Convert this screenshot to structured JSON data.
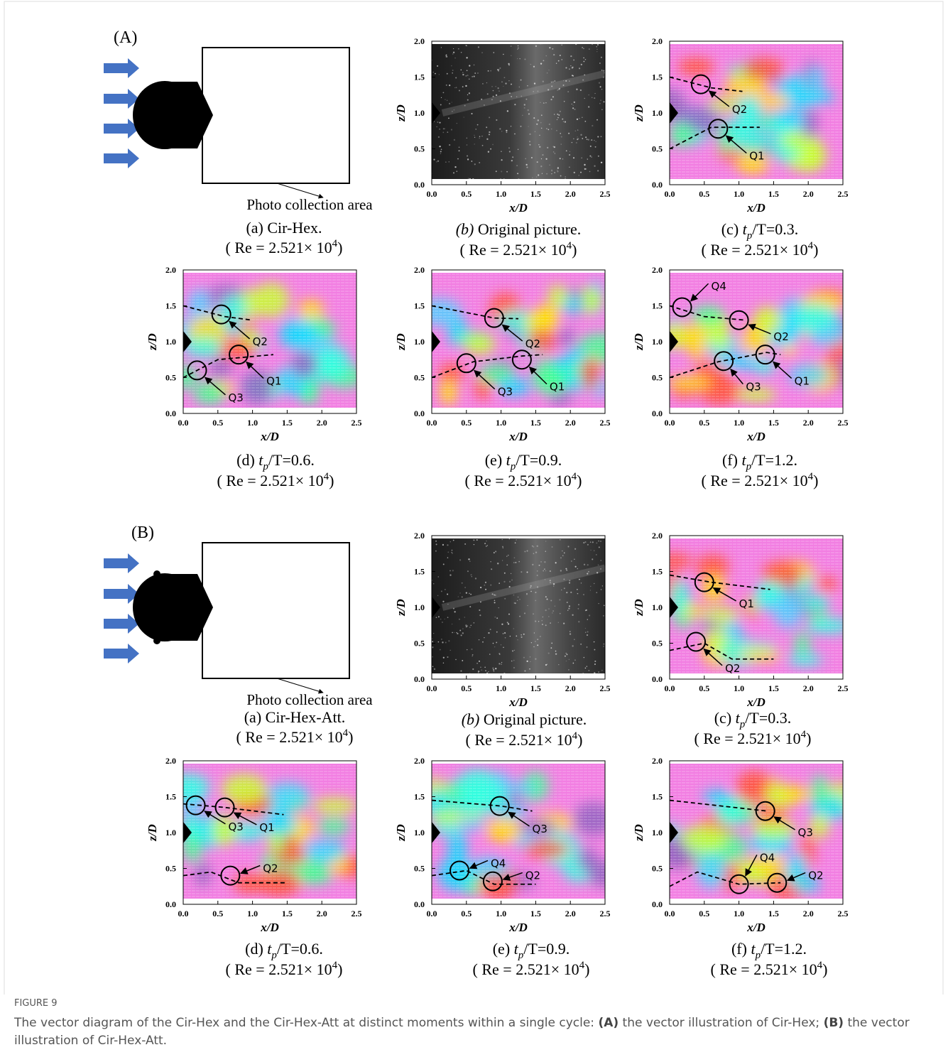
{
  "axes": {
    "x_label": "x/D",
    "y_label": "z/D",
    "xticks": [
      "0.0",
      "0.5",
      "1.0",
      "1.5",
      "2.0",
      "2.5"
    ],
    "yticks": [
      "0.0",
      "0.5",
      "1.0",
      "1.5",
      "2.0"
    ]
  },
  "reynolds": {
    "base": "( Re = 2.521× 10",
    "exp": "4",
    "close": ")"
  },
  "groups": [
    {
      "label": "(A)",
      "schematic": {
        "area_label": "Photo collection area",
        "caption": "(a) Cir-Hex."
      },
      "panels": [
        {
          "caption": {
            "letter": "(b)",
            "text": " Original picture."
          },
          "annotations": []
        },
        {
          "caption": {
            "letter": "(c) ",
            "t": "t",
            "sub": "p",
            "text": "/T=0.3."
          },
          "annotations": [
            "Q2",
            "Q1"
          ]
        },
        {
          "caption": {
            "letter": "(d) ",
            "t": "t",
            "sub": "p",
            "text": "/T=0.6."
          },
          "annotations": [
            "Q2",
            "Q1",
            "Q3"
          ]
        },
        {
          "caption": {
            "letter": "(e) ",
            "t": "t",
            "sub": "p",
            "text": "/T=0.9."
          },
          "annotations": [
            "Q2",
            "Q1",
            "Q3"
          ]
        },
        {
          "caption": {
            "letter": "(f) ",
            "t": "t",
            "sub": "p",
            "text": "/T=1.2."
          },
          "annotations": [
            "Q4",
            "Q2",
            "Q3",
            "Q1"
          ]
        }
      ]
    },
    {
      "label": "(B)",
      "schematic": {
        "area_label": "Photo collection area",
        "caption": "(a) Cir-Hex-Att."
      },
      "panels": [
        {
          "caption": {
            "letter": "(b)",
            "text": " Original picture."
          },
          "annotations": []
        },
        {
          "caption": {
            "letter": "(c) ",
            "t": "t",
            "sub": "p",
            "text": "/T=0.3."
          },
          "annotations": [
            "Q1",
            "Q2"
          ]
        },
        {
          "caption": {
            "letter": "(d) ",
            "t": "t",
            "sub": "p",
            "text": "/T=0.6."
          },
          "annotations": [
            "Q3",
            "Q1",
            "Q2"
          ]
        },
        {
          "caption": {
            "letter": "(e) ",
            "t": "t",
            "sub": "p",
            "text": "/T=0.9."
          },
          "annotations": [
            "Q3",
            "Q4",
            "Q2"
          ]
        },
        {
          "caption": {
            "letter": "(f) ",
            "t": "t",
            "sub": "p",
            "text": "/T=1.2."
          },
          "annotations": [
            "Q3",
            "Q4",
            "Q2"
          ]
        }
      ]
    }
  ],
  "figure": {
    "label": "FIGURE 9",
    "caption": [
      "The vector diagram of the Cir-Hex and the Cir-Hex-Att at distinct moments within a single cycle: ",
      "(A)",
      " the vector illustration of Cir-Hex; ",
      "(B)",
      " the vector illustration of Cir-Hex-Att."
    ]
  }
}
